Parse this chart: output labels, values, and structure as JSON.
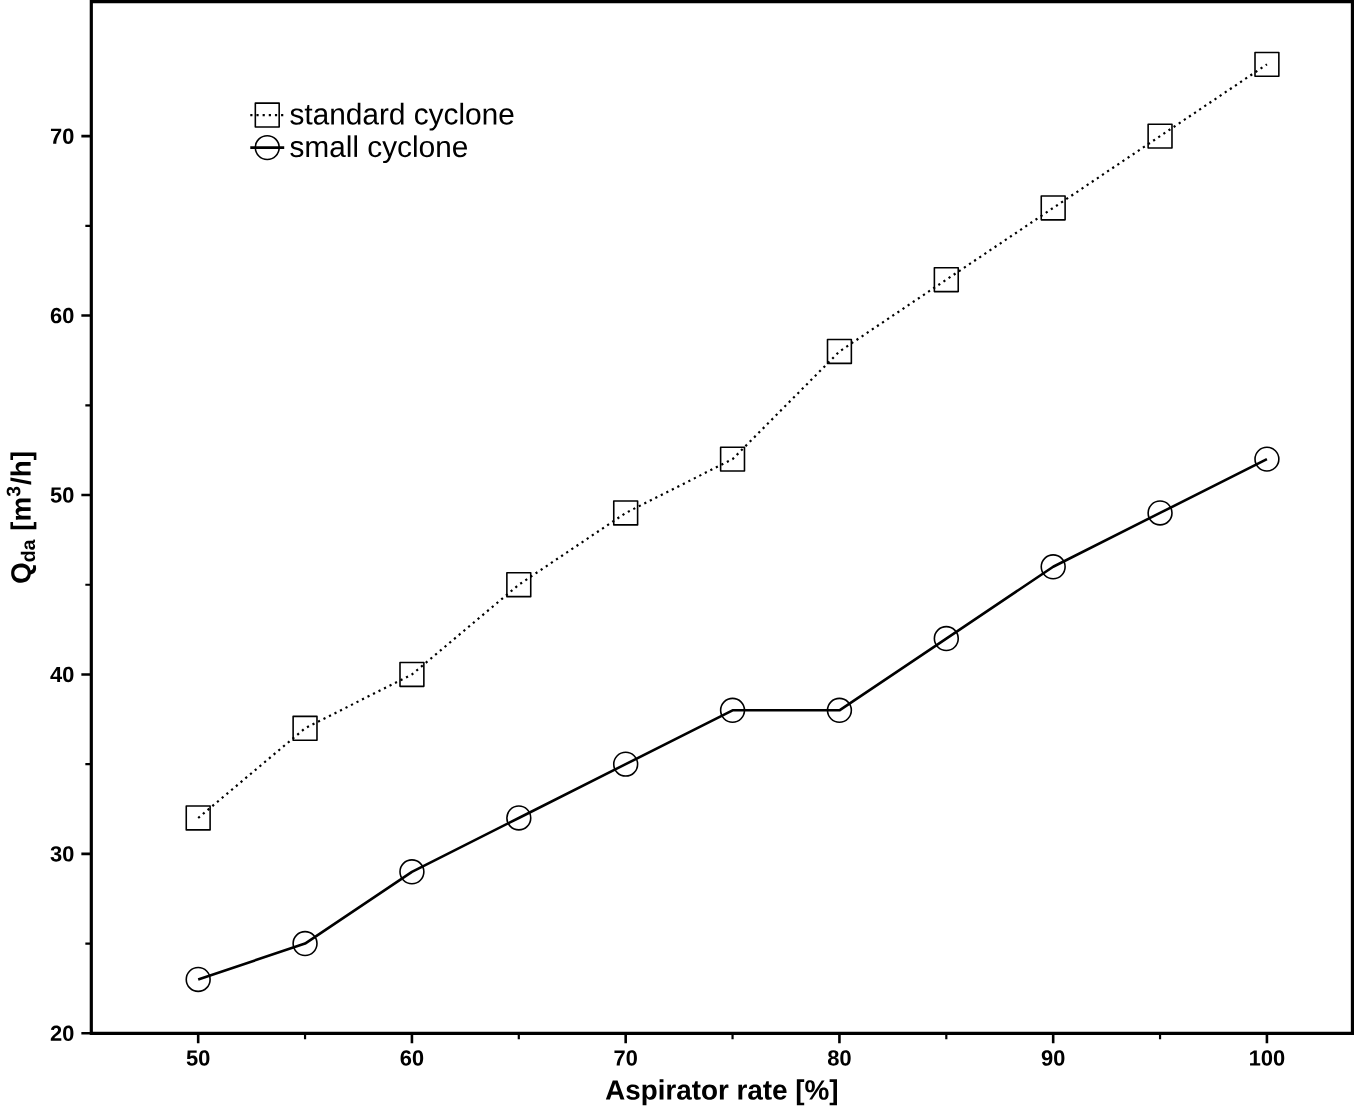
{
  "chart_data": {
    "type": "line",
    "xlabel": "Aspirator rate [%]",
    "ylabel": "Q$_{da}$ [m$^{3}$/h]",
    "x": [
      50,
      55,
      60,
      65,
      70,
      75,
      80,
      85,
      90,
      95,
      100
    ],
    "series": [
      {
        "name": "standard cyclone",
        "color": "#000000",
        "marker": "square",
        "line_style": "dotted",
        "values": [
          32,
          37,
          40,
          45,
          49,
          52,
          58,
          62,
          66,
          70,
          74
        ]
      },
      {
        "name": "small cyclone",
        "color": "#000000",
        "marker": "circle",
        "line_style": "solid",
        "values": [
          23,
          25,
          29,
          32,
          35,
          38,
          38,
          42,
          46,
          49,
          52
        ]
      }
    ],
    "xlim": [
      45,
      104
    ],
    "ylim": [
      20,
      77.5
    ],
    "xticks": [
      50,
      60,
      70,
      80,
      90,
      100
    ],
    "yticks": [
      20,
      30,
      40,
      50,
      60,
      70
    ],
    "legend": "top left",
    "grid": false
  }
}
